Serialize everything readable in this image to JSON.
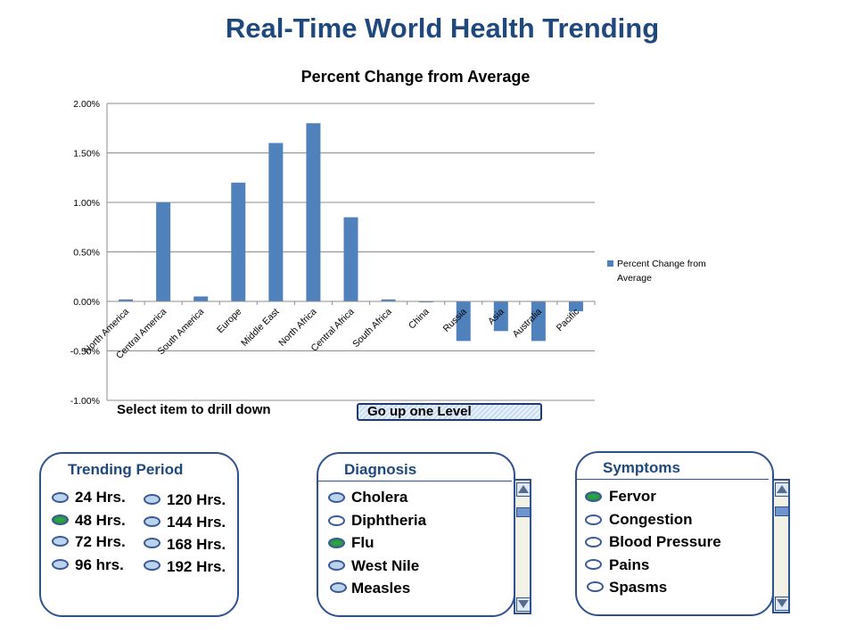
{
  "page": {
    "title": "Real-Time World Health Trending"
  },
  "chart_data": {
    "type": "bar",
    "title": "Percent Change from Average",
    "categories": [
      "North America",
      "Central America",
      "South America",
      "Europe",
      "Middle East",
      "North Africa",
      "Central Africa",
      "South Africa",
      "China",
      "Russia",
      "Asia",
      "Australia",
      "Pacific"
    ],
    "series": [
      {
        "name": "Percent Change from Average",
        "values": [
          0.0002,
          0.01,
          0.0005,
          0.012,
          0.016,
          0.018,
          0.0085,
          0.0002,
          -0.0001,
          -0.004,
          -0.003,
          -0.004,
          -0.001
        ]
      }
    ],
    "ylim": [
      -0.01,
      0.02
    ],
    "yticks": [
      -0.01,
      -0.005,
      0,
      0.005,
      0.01,
      0.015,
      0.02
    ],
    "ytick_labels": [
      "-1.00%",
      "-0.50%",
      "0.00%",
      "0.50%",
      "1.00%",
      "1.50%",
      "2.00%"
    ],
    "grid": true,
    "legend_position": "right",
    "legend_lines": [
      "Percent Change from",
      "Average"
    ],
    "bar_color": "#4f81bd"
  },
  "controls": {
    "drill_label": "Select item to drill down",
    "up_button": "Go up one Level"
  },
  "trending": {
    "title": "Trending  Period",
    "options": [
      {
        "label": "24 Hrs.",
        "selected": false
      },
      {
        "label": "48 Hrs.",
        "selected": true
      },
      {
        "label": "72 Hrs.",
        "selected": false
      },
      {
        "label": "96 hrs.",
        "selected": false
      },
      {
        "label": "120 Hrs.",
        "selected": false
      },
      {
        "label": "144 Hrs.",
        "selected": false
      },
      {
        "label": "168 Hrs.",
        "selected": false
      },
      {
        "label": "192 Hrs.",
        "selected": false
      }
    ]
  },
  "diagnosis": {
    "title": "Diagnosis",
    "options": [
      {
        "label": "Cholera",
        "selected": false
      },
      {
        "label": "Diphtheria",
        "selected": false
      },
      {
        "label": "Flu",
        "selected": true
      },
      {
        "label": "West Nile",
        "selected": false
      },
      {
        "label": "Measles",
        "selected": false
      }
    ]
  },
  "symptoms": {
    "title": "Symptoms",
    "options": [
      {
        "label": "Fervor",
        "selected": true
      },
      {
        "label": "Congestion",
        "selected": false
      },
      {
        "label": "Blood Pressure",
        "selected": false
      },
      {
        "label": "Pains",
        "selected": false
      },
      {
        "label": "Spasms",
        "selected": false
      }
    ]
  },
  "icons": {
    "scroll_up": "arrow-up-icon",
    "scroll_down": "arrow-down-icon",
    "radio": "radio-button-icon"
  }
}
